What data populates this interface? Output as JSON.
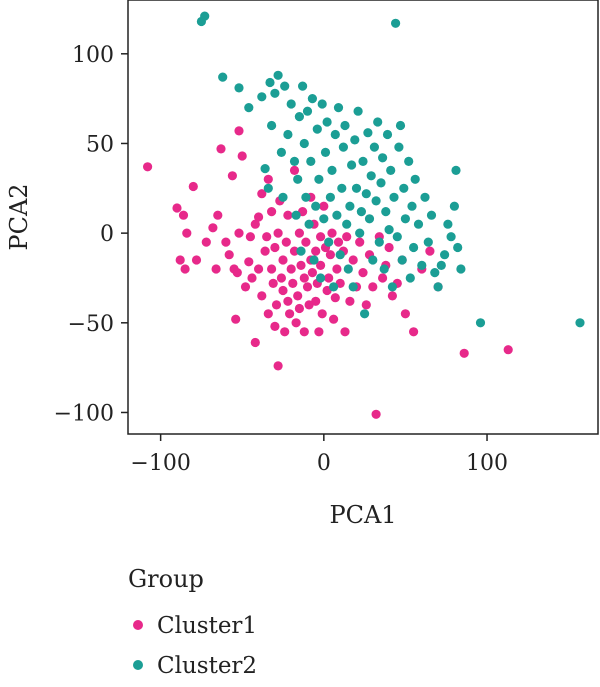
{
  "chart_data": {
    "type": "scatter",
    "title": "",
    "xlabel": "PCA1",
    "ylabel": "PCA2",
    "xlim": [
      -120,
      168
    ],
    "ylim": [
      -112,
      130
    ],
    "xticks": [
      -100,
      0,
      100
    ],
    "xtick_labels": [
      "−100",
      "0",
      "100"
    ],
    "yticks": [
      -100,
      -50,
      0,
      50,
      100
    ],
    "ytick_labels": [
      "−100",
      "−50",
      "0",
      "50",
      "100"
    ],
    "grid": false,
    "legend": {
      "title": "Group",
      "placement": "bottom"
    },
    "series": [
      {
        "name": "Cluster1",
        "color": "#e7298a",
        "points": [
          [
            -108,
            37
          ],
          [
            -90,
            14
          ],
          [
            -88,
            -15
          ],
          [
            -86,
            10
          ],
          [
            -85,
            -20
          ],
          [
            -84,
            0
          ],
          [
            -80,
            26
          ],
          [
            -78,
            -15
          ],
          [
            -72,
            -5
          ],
          [
            -68,
            3
          ],
          [
            -66,
            -20
          ],
          [
            -65,
            10
          ],
          [
            -63,
            47
          ],
          [
            -60,
            -5
          ],
          [
            -58,
            -12
          ],
          [
            -56,
            32
          ],
          [
            -55,
            -20
          ],
          [
            -54,
            -48
          ],
          [
            -53,
            -22
          ],
          [
            -52,
            57
          ],
          [
            -52,
            0
          ],
          [
            -50,
            43
          ],
          [
            -48,
            -30
          ],
          [
            -46,
            -16
          ],
          [
            -45,
            -2
          ],
          [
            -44,
            -25
          ],
          [
            -42,
            5
          ],
          [
            -42,
            -61
          ],
          [
            -40,
            -20
          ],
          [
            -40,
            9
          ],
          [
            -38,
            22
          ],
          [
            -38,
            -35
          ],
          [
            -36,
            -10
          ],
          [
            -35,
            -2
          ],
          [
            -34,
            30
          ],
          [
            -34,
            -45
          ],
          [
            -32,
            12
          ],
          [
            -32,
            -20
          ],
          [
            -31,
            -28
          ],
          [
            -30,
            -8
          ],
          [
            -30,
            -52
          ],
          [
            -29,
            -40
          ],
          [
            -28,
            -74
          ],
          [
            -28,
            0
          ],
          [
            -27,
            18
          ],
          [
            -26,
            -25
          ],
          [
            -25,
            -15
          ],
          [
            -25,
            -32
          ],
          [
            -24,
            -55
          ],
          [
            -23,
            -5
          ],
          [
            -22,
            10
          ],
          [
            -22,
            -38
          ],
          [
            -21,
            -45
          ],
          [
            -20,
            -20
          ],
          [
            -19,
            -28
          ],
          [
            -18,
            35
          ],
          [
            -18,
            -10
          ],
          [
            -17,
            -50
          ],
          [
            -16,
            -35
          ],
          [
            -15,
            0
          ],
          [
            -15,
            -42
          ],
          [
            -14,
            -18
          ],
          [
            -13,
            12
          ],
          [
            -12,
            -55
          ],
          [
            -12,
            -25
          ],
          [
            -11,
            -5
          ],
          [
            -10,
            -30
          ],
          [
            -9,
            -40
          ],
          [
            -8,
            20
          ],
          [
            -8,
            -15
          ],
          [
            -7,
            -22
          ],
          [
            -6,
            5
          ],
          [
            -5,
            -38
          ],
          [
            -5,
            -10
          ],
          [
            -4,
            -28
          ],
          [
            -3,
            -55
          ],
          [
            -2,
            -2
          ],
          [
            -2,
            -18
          ],
          [
            -1,
            -45
          ],
          [
            0,
            15
          ],
          [
            1,
            -8
          ],
          [
            2,
            -32
          ],
          [
            3,
            -25
          ],
          [
            4,
            -12
          ],
          [
            5,
            0
          ],
          [
            6,
            -48
          ],
          [
            7,
            -36
          ],
          [
            8,
            -20
          ],
          [
            9,
            -5
          ],
          [
            10,
            -28
          ],
          [
            12,
            -10
          ],
          [
            13,
            -55
          ],
          [
            14,
            -2
          ],
          [
            16,
            -38
          ],
          [
            18,
            -15
          ],
          [
            20,
            -30
          ],
          [
            22,
            -5
          ],
          [
            24,
            -22
          ],
          [
            26,
            -40
          ],
          [
            28,
            -12
          ],
          [
            30,
            -30
          ],
          [
            32,
            -101
          ],
          [
            34,
            -2
          ],
          [
            36,
            -25
          ],
          [
            38,
            -18
          ],
          [
            40,
            -8
          ],
          [
            42,
            -35
          ],
          [
            45,
            -28
          ],
          [
            48,
            -15
          ],
          [
            50,
            -45
          ],
          [
            55,
            -55
          ],
          [
            60,
            -20
          ],
          [
            65,
            -10
          ],
          [
            70,
            -30
          ],
          [
            86,
            -67
          ],
          [
            113,
            -65
          ]
        ]
      },
      {
        "name": "Cluster2",
        "color": "#1b9e95",
        "points": [
          [
            -75,
            118
          ],
          [
            -73,
            121
          ],
          [
            -62,
            87
          ],
          [
            -52,
            81
          ],
          [
            -46,
            70
          ],
          [
            -38,
            76
          ],
          [
            -36,
            36
          ],
          [
            -34,
            25
          ],
          [
            -33,
            84
          ],
          [
            -32,
            60
          ],
          [
            -30,
            78
          ],
          [
            -28,
            88
          ],
          [
            -26,
            45
          ],
          [
            -25,
            20
          ],
          [
            -24,
            82
          ],
          [
            -22,
            55
          ],
          [
            -20,
            72
          ],
          [
            -18,
            40
          ],
          [
            -17,
            10
          ],
          [
            -16,
            30
          ],
          [
            -15,
            65
          ],
          [
            -14,
            -10
          ],
          [
            -13,
            82
          ],
          [
            -12,
            50
          ],
          [
            -11,
            20
          ],
          [
            -10,
            68
          ],
          [
            -9,
            5
          ],
          [
            -8,
            40
          ],
          [
            -7,
            75
          ],
          [
            -6,
            -15
          ],
          [
            -5,
            15
          ],
          [
            -4,
            58
          ],
          [
            -3,
            30
          ],
          [
            -2,
            -25
          ],
          [
            -1,
            72
          ],
          [
            0,
            8
          ],
          [
            1,
            45
          ],
          [
            2,
            62
          ],
          [
            3,
            -5
          ],
          [
            4,
            20
          ],
          [
            5,
            35
          ],
          [
            6,
            -30
          ],
          [
            7,
            55
          ],
          [
            8,
            10
          ],
          [
            9,
            70
          ],
          [
            10,
            -12
          ],
          [
            11,
            25
          ],
          [
            12,
            48
          ],
          [
            13,
            60
          ],
          [
            14,
            5
          ],
          [
            15,
            -20
          ],
          [
            16,
            15
          ],
          [
            17,
            38
          ],
          [
            18,
            -30
          ],
          [
            19,
            52
          ],
          [
            20,
            25
          ],
          [
            21,
            68
          ],
          [
            22,
            0
          ],
          [
            23,
            12
          ],
          [
            24,
            40
          ],
          [
            25,
            -45
          ],
          [
            26,
            22
          ],
          [
            27,
            56
          ],
          [
            28,
            8
          ],
          [
            29,
            32
          ],
          [
            30,
            -15
          ],
          [
            31,
            48
          ],
          [
            32,
            18
          ],
          [
            33,
            62
          ],
          [
            34,
            -5
          ],
          [
            35,
            28
          ],
          [
            36,
            42
          ],
          [
            37,
            -20
          ],
          [
            38,
            12
          ],
          [
            39,
            55
          ],
          [
            40,
            2
          ],
          [
            41,
            35
          ],
          [
            42,
            -30
          ],
          [
            43,
            20
          ],
          [
            44,
            117
          ],
          [
            45,
            -2
          ],
          [
            46,
            48
          ],
          [
            47,
            60
          ],
          [
            48,
            -15
          ],
          [
            49,
            25
          ],
          [
            50,
            8
          ],
          [
            52,
            40
          ],
          [
            53,
            -25
          ],
          [
            54,
            15
          ],
          [
            55,
            -8
          ],
          [
            56,
            30
          ],
          [
            58,
            5
          ],
          [
            60,
            -18
          ],
          [
            62,
            20
          ],
          [
            64,
            -5
          ],
          [
            66,
            10
          ],
          [
            68,
            -22
          ],
          [
            70,
            -30
          ],
          [
            72,
            -18
          ],
          [
            74,
            -12
          ],
          [
            76,
            5
          ],
          [
            78,
            -2
          ],
          [
            80,
            15
          ],
          [
            81,
            35
          ],
          [
            82,
            -8
          ],
          [
            84,
            -20
          ],
          [
            96,
            -50
          ],
          [
            157,
            -50
          ]
        ]
      }
    ]
  }
}
